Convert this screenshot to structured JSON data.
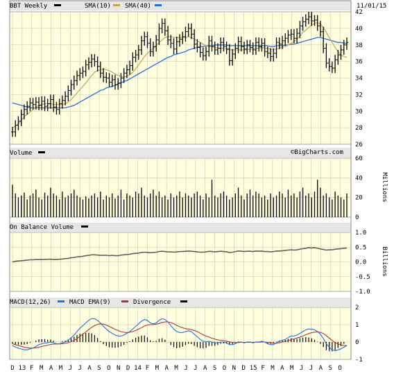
{
  "header": {
    "symbol": "BBT Weekly",
    "sma10_label": "SMA(10)",
    "sma40_label": "SMA(40)",
    "date": "11/01/15"
  },
  "colors": {
    "panel_bg": "#ffffe0",
    "grid": "#c8c8a8",
    "price": "#000000",
    "sma10": "#c8a050",
    "sma40": "#2070e0",
    "macd": "#2070e0",
    "macd_ema": "#b03030",
    "divergence": "#000000",
    "obv": "#606060"
  },
  "chart_data": [
    {
      "type": "ohlc",
      "panel": "price",
      "title": "BBT Weekly",
      "legend": [
        "SMA(10)",
        "SMA(40)"
      ],
      "ylim": [
        26,
        42
      ],
      "yticks": [
        "26",
        "28",
        "30",
        "32",
        "34",
        "36",
        "38",
        "40",
        "42"
      ],
      "close": [
        27.5,
        28.3,
        28.8,
        29.6,
        30.2,
        30.6,
        31.0,
        30.8,
        31.1,
        30.7,
        31.2,
        30.6,
        30.9,
        31.4,
        30.5,
        30.2,
        30.9,
        31.3,
        31.8,
        32.5,
        33.2,
        33.7,
        34.3,
        34.6,
        34.8,
        35.6,
        35.9,
        36.3,
        36.0,
        35.4,
        34.6,
        34.1,
        34.0,
        33.5,
        33.8,
        33.2,
        33.4,
        34.0,
        34.6,
        35.0,
        35.5,
        36.5,
        36.8,
        37.4,
        38.5,
        39.0,
        38.2,
        37.2,
        37.8,
        38.6,
        40.0,
        40.6,
        39.7,
        38.6,
        38.2,
        37.5,
        38.4,
        38.7,
        39.0,
        39.6,
        40.0,
        39.3,
        38.1,
        37.7,
        37.1,
        36.7,
        37.2,
        38.5,
        37.8,
        37.4,
        37.6,
        38.3,
        37.8,
        37.5,
        36.1,
        36.9,
        37.6,
        38.4,
        37.8,
        37.5,
        38.0,
        37.7,
        37.4,
        38.3,
        37.8,
        38.2,
        37.2,
        37.0,
        36.6,
        37.0,
        38.3,
        38.1,
        38.5,
        38.8,
        39.2,
        39.3,
        38.8,
        39.4,
        40.3,
        40.8,
        41.1,
        41.4,
        40.9,
        41.0,
        40.3,
        39.6,
        37.6,
        35.8,
        35.4,
        35.2,
        36.2,
        36.8,
        37.4,
        38.0,
        38.3
      ],
      "sma10": [
        28.0,
        28.2,
        28.5,
        28.9,
        29.3,
        29.6,
        29.9,
        30.2,
        30.5,
        30.7,
        30.8,
        30.9,
        30.9,
        30.9,
        30.8,
        30.8,
        30.8,
        30.8,
        30.9,
        31.1,
        31.4,
        31.8,
        32.2,
        32.6,
        33.0,
        33.4,
        33.9,
        34.3,
        34.7,
        34.9,
        35.0,
        35.1,
        35.0,
        34.9,
        34.7,
        34.5,
        34.3,
        34.2,
        34.1,
        34.2,
        34.4,
        34.7,
        35.1,
        35.6,
        36.1,
        36.6,
        37.0,
        37.3,
        37.6,
        37.9,
        38.3,
        38.6,
        38.9,
        39.0,
        39.0,
        38.9,
        38.9,
        38.9,
        38.9,
        38.9,
        39.0,
        38.9,
        38.7,
        38.5,
        38.3,
        38.1,
        37.9,
        37.8,
        37.8,
        37.7,
        37.6,
        37.6,
        37.6,
        37.5,
        37.4,
        37.4,
        37.4,
        37.4,
        37.4,
        37.4,
        37.4,
        37.5,
        37.5,
        37.6,
        37.6,
        37.7,
        37.6,
        37.6,
        37.5,
        37.4,
        37.5,
        37.6,
        37.7,
        37.8,
        38.0,
        38.2,
        38.4,
        38.7,
        39.1,
        39.5,
        39.8,
        40.1,
        40.4,
        40.6,
        40.7,
        40.5,
        40.1,
        39.5,
        38.9,
        38.3,
        37.7,
        37.2,
        36.8,
        36.6,
        36.5
      ],
      "sma40": [
        31.0,
        30.9,
        30.8,
        30.7,
        30.6,
        30.5,
        30.4,
        30.4,
        30.4,
        30.4,
        30.4,
        30.4,
        30.4,
        30.4,
        30.4,
        30.4,
        30.4,
        30.4,
        30.4,
        30.5,
        30.6,
        30.7,
        30.9,
        31.1,
        31.3,
        31.5,
        31.7,
        31.9,
        32.1,
        32.3,
        32.5,
        32.6,
        32.8,
        32.9,
        33.0,
        33.1,
        33.3,
        33.4,
        33.6,
        33.7,
        33.9,
        34.1,
        34.3,
        34.5,
        34.7,
        34.9,
        35.1,
        35.3,
        35.5,
        35.7,
        35.9,
        36.1,
        36.3,
        36.5,
        36.6,
        36.8,
        36.9,
        37.0,
        37.1,
        37.2,
        37.4,
        37.5,
        37.6,
        37.7,
        37.8,
        37.8,
        37.9,
        37.9,
        37.9,
        38.0,
        38.0,
        38.0,
        38.0,
        38.0,
        37.9,
        37.9,
        37.9,
        37.9,
        37.9,
        37.9,
        37.9,
        37.9,
        37.9,
        37.9,
        37.9,
        37.9,
        37.9,
        37.9,
        37.8,
        37.8,
        37.9,
        37.9,
        37.9,
        38.0,
        38.0,
        38.1,
        38.1,
        38.2,
        38.3,
        38.4,
        38.5,
        38.6,
        38.7,
        38.8,
        38.9,
        38.9,
        38.8,
        38.7,
        38.6,
        38.5,
        38.4,
        38.3,
        38.3,
        38.2,
        38.2
      ]
    },
    {
      "type": "bar",
      "panel": "volume",
      "title": "Volume",
      "ylabel": "Millions",
      "ylim": [
        0,
        60
      ],
      "yticks": [
        "0",
        "20",
        "40",
        "60"
      ],
      "values": [
        33,
        24,
        20,
        22,
        25,
        18,
        22,
        24,
        28,
        20,
        18,
        25,
        22,
        30,
        24,
        22,
        18,
        26,
        20,
        22,
        24,
        28,
        22,
        20,
        18,
        21,
        19,
        22,
        24,
        20,
        26,
        18,
        22,
        20,
        24,
        19,
        22,
        28,
        18,
        24,
        22,
        20,
        26,
        24,
        30,
        22,
        20,
        24,
        28,
        22,
        26,
        20,
        22,
        18,
        24,
        20,
        22,
        26,
        20,
        24,
        22,
        20,
        24,
        26,
        22,
        18,
        24,
        20,
        38,
        22,
        20,
        24,
        26,
        22,
        18,
        20,
        24,
        30,
        22,
        18,
        24,
        28,
        22,
        26,
        24,
        20,
        22,
        18,
        24,
        20,
        22,
        26,
        24,
        20,
        28,
        22,
        24,
        20,
        26,
        30,
        22,
        24,
        20,
        26,
        38,
        30,
        22,
        24,
        20,
        18,
        26,
        22,
        20,
        18,
        24
      ]
    },
    {
      "type": "line",
      "panel": "obv",
      "title": "On Balance Volume",
      "ylabel": "Billions",
      "ylim": [
        -1.0,
        1.0
      ],
      "yticks": [
        "-1.0",
        "-0.5",
        "0.0",
        "0.5",
        "1.0"
      ],
      "values": [
        0.0,
        0.02,
        0.03,
        0.04,
        0.05,
        0.06,
        0.07,
        0.07,
        0.08,
        0.08,
        0.08,
        0.08,
        0.09,
        0.09,
        0.08,
        0.08,
        0.09,
        0.1,
        0.11,
        0.12,
        0.14,
        0.15,
        0.17,
        0.18,
        0.19,
        0.21,
        0.22,
        0.24,
        0.24,
        0.23,
        0.22,
        0.22,
        0.22,
        0.21,
        0.22,
        0.21,
        0.21,
        0.23,
        0.24,
        0.25,
        0.26,
        0.28,
        0.29,
        0.3,
        0.32,
        0.33,
        0.32,
        0.31,
        0.32,
        0.33,
        0.35,
        0.36,
        0.35,
        0.34,
        0.34,
        0.33,
        0.34,
        0.35,
        0.35,
        0.36,
        0.37,
        0.36,
        0.35,
        0.34,
        0.33,
        0.33,
        0.34,
        0.36,
        0.35,
        0.34,
        0.35,
        0.36,
        0.35,
        0.34,
        0.32,
        0.33,
        0.35,
        0.37,
        0.36,
        0.35,
        0.36,
        0.36,
        0.35,
        0.37,
        0.36,
        0.37,
        0.35,
        0.35,
        0.34,
        0.35,
        0.37,
        0.37,
        0.38,
        0.39,
        0.4,
        0.41,
        0.4,
        0.41,
        0.43,
        0.45,
        0.46,
        0.48,
        0.47,
        0.48,
        0.46,
        0.44,
        0.42,
        0.4,
        0.41,
        0.41,
        0.43,
        0.44,
        0.45,
        0.46,
        0.47
      ]
    },
    {
      "type": "line",
      "panel": "macd",
      "title": "MACD(12,26)",
      "legend": [
        "MACD(12,26)",
        "MACD EMA(9)",
        "Divergence"
      ],
      "ylim": [
        -1,
        2
      ],
      "yticks": [
        "-1",
        "0",
        "1",
        "2"
      ],
      "macd": [
        -0.2,
        -0.3,
        -0.35,
        -0.4,
        -0.45,
        -0.45,
        -0.4,
        -0.35,
        -0.25,
        -0.15,
        -0.1,
        -0.05,
        -0.05,
        0.0,
        -0.05,
        -0.1,
        -0.1,
        -0.05,
        0.0,
        0.1,
        0.25,
        0.4,
        0.6,
        0.8,
        0.95,
        1.1,
        1.25,
        1.35,
        1.35,
        1.25,
        1.1,
        0.9,
        0.75,
        0.6,
        0.5,
        0.4,
        0.35,
        0.35,
        0.4,
        0.5,
        0.6,
        0.75,
        0.9,
        1.05,
        1.2,
        1.3,
        1.25,
        1.1,
        1.05,
        1.1,
        1.25,
        1.35,
        1.3,
        1.15,
        0.95,
        0.75,
        0.6,
        0.55,
        0.55,
        0.6,
        0.65,
        0.6,
        0.45,
        0.3,
        0.15,
        0.05,
        0.0,
        0.05,
        0.0,
        -0.05,
        -0.05,
        0.0,
        0.0,
        -0.05,
        -0.15,
        -0.15,
        -0.1,
        0.0,
        0.0,
        -0.05,
        0.0,
        0.0,
        -0.05,
        0.0,
        0.0,
        0.05,
        0.0,
        -0.1,
        -0.15,
        -0.15,
        -0.05,
        0.05,
        0.1,
        0.15,
        0.25,
        0.35,
        0.35,
        0.4,
        0.5,
        0.6,
        0.7,
        0.75,
        0.75,
        0.7,
        0.6,
        0.45,
        0.2,
        -0.1,
        -0.3,
        -0.45,
        -0.5,
        -0.45,
        -0.4,
        -0.3,
        -0.2
      ],
      "ema": [
        -0.1,
        -0.15,
        -0.2,
        -0.25,
        -0.3,
        -0.33,
        -0.35,
        -0.35,
        -0.33,
        -0.3,
        -0.26,
        -0.22,
        -0.18,
        -0.14,
        -0.12,
        -0.11,
        -0.11,
        -0.1,
        -0.08,
        -0.04,
        0.02,
        0.1,
        0.2,
        0.32,
        0.45,
        0.58,
        0.72,
        0.85,
        0.95,
        1.02,
        1.05,
        1.03,
        0.98,
        0.9,
        0.82,
        0.73,
        0.66,
        0.6,
        0.56,
        0.55,
        0.56,
        0.6,
        0.66,
        0.74,
        0.83,
        0.92,
        0.98,
        1.0,
        1.01,
        1.03,
        1.07,
        1.13,
        1.16,
        1.16,
        1.12,
        1.05,
        0.96,
        0.88,
        0.82,
        0.77,
        0.75,
        0.72,
        0.67,
        0.6,
        0.51,
        0.42,
        0.34,
        0.28,
        0.22,
        0.17,
        0.12,
        0.1,
        0.08,
        0.05,
        0.01,
        -0.02,
        -0.04,
        -0.03,
        -0.02,
        -0.02,
        -0.02,
        -0.01,
        -0.02,
        -0.01,
        -0.01,
        0.0,
        0.0,
        -0.02,
        -0.05,
        -0.07,
        -0.07,
        -0.04,
        0.0,
        0.03,
        0.08,
        0.14,
        0.18,
        0.23,
        0.28,
        0.35,
        0.42,
        0.49,
        0.54,
        0.57,
        0.58,
        0.56,
        0.49,
        0.37,
        0.23,
        0.09,
        -0.03,
        -0.11,
        -0.17,
        -0.2,
        -0.2
      ],
      "divergence": [
        -0.1,
        -0.15,
        -0.15,
        -0.15,
        -0.15,
        -0.12,
        -0.05,
        0.0,
        0.08,
        0.15,
        0.16,
        0.17,
        0.13,
        0.14,
        0.07,
        0.01,
        0.01,
        0.05,
        0.08,
        0.14,
        0.23,
        0.3,
        0.4,
        0.48,
        0.5,
        0.52,
        0.53,
        0.5,
        0.4,
        0.23,
        0.05,
        -0.13,
        -0.23,
        -0.3,
        -0.32,
        -0.33,
        -0.31,
        -0.25,
        -0.16,
        -0.05,
        0.04,
        0.15,
        0.24,
        0.31,
        0.37,
        0.38,
        0.27,
        0.1,
        0.04,
        0.07,
        0.18,
        0.22,
        0.14,
        -0.01,
        -0.17,
        -0.3,
        -0.36,
        -0.33,
        -0.27,
        -0.17,
        -0.1,
        -0.12,
        -0.22,
        -0.3,
        -0.36,
        -0.37,
        -0.34,
        -0.23,
        -0.22,
        -0.22,
        -0.17,
        -0.1,
        -0.08,
        -0.1,
        -0.16,
        -0.13,
        -0.06,
        0.03,
        0.02,
        -0.03,
        0.02,
        0.01,
        -0.03,
        0.01,
        0.01,
        0.05,
        0.0,
        -0.08,
        -0.1,
        -0.08,
        0.02,
        0.09,
        0.1,
        0.12,
        0.17,
        0.21,
        0.17,
        0.17,
        0.22,
        0.25,
        0.28,
        0.26,
        0.21,
        0.13,
        0.02,
        -0.11,
        -0.29,
        -0.47,
        -0.53,
        -0.54,
        -0.47,
        -0.34,
        -0.23,
        -0.1,
        0.0
      ]
    }
  ],
  "x_axis": {
    "labels": [
      "D",
      "13",
      "F",
      "M",
      "A",
      "M",
      "J",
      "J",
      "A",
      "S",
      "O",
      "N",
      "D",
      "14",
      "F",
      "M",
      "A",
      "M",
      "J",
      "J",
      "A",
      "S",
      "O",
      "N",
      "D",
      "15",
      "F",
      "M",
      "A",
      "M",
      "J",
      "J",
      "A",
      "S",
      "O"
    ]
  },
  "panels": {
    "price_title": "BBT Weekly",
    "volume_title": "Volume",
    "volume_unit": "Millions",
    "obv_title": "On Balance Volume",
    "obv_unit": "Billions",
    "macd_title": "MACD(12,26)",
    "macd_ema_label": "MACD EMA(9)",
    "divergence_label": "Divergence",
    "watermark": "©BigCharts.com"
  }
}
